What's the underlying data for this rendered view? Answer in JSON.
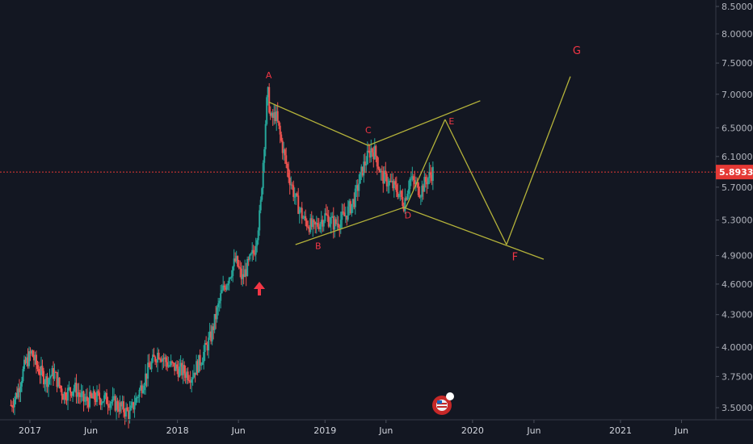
{
  "chart_data": {
    "type": "candlestick",
    "price_axis": {
      "ticks": [
        "8.50000",
        "8.00000",
        "7.50000",
        "7.00000",
        "6.50000",
        "6.10000",
        "5.70000",
        "5.30000",
        "4.90000",
        "4.60000",
        "4.30000",
        "4.00000",
        "3.75000",
        "3.50000"
      ],
      "scale": "log"
    },
    "time_axis": {
      "ticks": [
        "2017",
        "Jun",
        "2018",
        "Jun",
        "2019",
        "Jun",
        "2020",
        "Jun",
        "2021",
        "Jun"
      ]
    },
    "current_price": {
      "value": 5.89334,
      "label": "5.89334"
    },
    "price_path": [
      [
        "2016-11-15",
        3.52
      ],
      [
        "2016-12-01",
        3.62
      ],
      [
        "2016-12-20",
        3.85
      ],
      [
        "2017-01-05",
        3.95
      ],
      [
        "2017-01-20",
        3.82
      ],
      [
        "2017-02-10",
        3.72
      ],
      [
        "2017-03-01",
        3.78
      ],
      [
        "2017-03-25",
        3.6
      ],
      [
        "2017-04-20",
        3.66
      ],
      [
        "2017-05-15",
        3.55
      ],
      [
        "2017-06-15",
        3.58
      ],
      [
        "2017-07-15",
        3.56
      ],
      [
        "2017-08-15",
        3.5
      ],
      [
        "2017-09-05",
        3.45
      ],
      [
        "2017-09-25",
        3.6
      ],
      [
        "2017-10-20",
        3.8
      ],
      [
        "2017-11-15",
        3.96
      ],
      [
        "2017-12-10",
        3.85
      ],
      [
        "2018-01-10",
        3.8
      ],
      [
        "2018-02-05",
        3.76
      ],
      [
        "2018-03-01",
        3.9
      ],
      [
        "2018-03-25",
        4.1
      ],
      [
        "2018-04-20",
        4.5
      ],
      [
        "2018-05-10",
        4.7
      ],
      [
        "2018-05-25",
        4.85
      ],
      [
        "2018-06-10",
        4.65
      ],
      [
        "2018-06-25",
        4.8
      ],
      [
        "2018-07-10",
        4.95
      ],
      [
        "2018-07-25",
        5.4
      ],
      [
        "2018-08-05",
        6.4
      ],
      [
        "2018-08-12",
        7.05
      ],
      [
        "2018-08-20",
        6.6
      ],
      [
        "2018-09-01",
        6.7
      ],
      [
        "2018-09-15",
        6.3
      ],
      [
        "2018-10-01",
        5.9
      ],
      [
        "2018-10-20",
        5.55
      ],
      [
        "2018-11-10",
        5.3
      ],
      [
        "2018-12-05",
        5.2
      ],
      [
        "2019-01-01",
        5.35
      ],
      [
        "2019-01-25",
        5.25
      ],
      [
        "2019-02-20",
        5.35
      ],
      [
        "2019-03-15",
        5.55
      ],
      [
        "2019-04-05",
        5.95
      ],
      [
        "2019-04-25",
        6.2
      ],
      [
        "2019-05-05",
        6.15
      ],
      [
        "2019-05-20",
        5.85
      ],
      [
        "2019-06-10",
        5.75
      ],
      [
        "2019-06-30",
        5.65
      ],
      [
        "2019-07-15",
        5.5
      ],
      [
        "2019-07-30",
        5.8
      ],
      [
        "2019-08-10",
        5.75
      ],
      [
        "2019-08-25",
        5.65
      ],
      [
        "2019-09-10",
        5.8
      ],
      [
        "2019-09-25",
        5.9
      ]
    ],
    "annotations": [
      {
        "label": "A",
        "date": "2018-08-15",
        "value": 7.25,
        "size": "small"
      },
      {
        "label": "B",
        "date": "2018-12-15",
        "value": 4.97,
        "size": "small"
      },
      {
        "label": "C",
        "date": "2019-04-18",
        "value": 6.42,
        "size": "small"
      },
      {
        "label": "D",
        "date": "2019-07-25",
        "value": 5.32,
        "size": "small"
      },
      {
        "label": "E",
        "date": "2019-11-10",
        "value": 6.55,
        "size": "small"
      },
      {
        "label": "F",
        "date": "2020-04-15",
        "value": 4.85,
        "size": "big"
      },
      {
        "label": "G",
        "date": "2020-09-15",
        "value": 7.65,
        "size": "big"
      }
    ],
    "trendlines": [
      {
        "from": [
          "2018-08-15",
          6.88
        ],
        "to": [
          "2019-04-18",
          6.25
        ]
      },
      {
        "from": [
          "2019-04-18",
          6.25
        ],
        "to": [
          "2020-01-20",
          6.9
        ]
      },
      {
        "from": [
          "2018-10-20",
          5.02
        ],
        "to": [
          "2019-07-15",
          5.45
        ]
      },
      {
        "from": [
          "2019-07-15",
          5.45
        ],
        "to": [
          "2020-06-25",
          4.86
        ]
      },
      {
        "from": [
          "2019-07-20",
          5.45
        ],
        "to": [
          "2019-10-25",
          6.62
        ]
      },
      {
        "from": [
          "2019-10-25",
          6.62
        ],
        "to": [
          "2020-03-25",
          5.02
        ]
      },
      {
        "from": [
          "2020-03-25",
          5.02
        ],
        "to": [
          "2020-08-30",
          7.28
        ]
      }
    ],
    "colors": {
      "background": "#131722",
      "up": "#26a69a",
      "down": "#ef5350",
      "pattern_line": "#b5b33a",
      "label": "#f23645",
      "price_line": "#e53935"
    }
  }
}
